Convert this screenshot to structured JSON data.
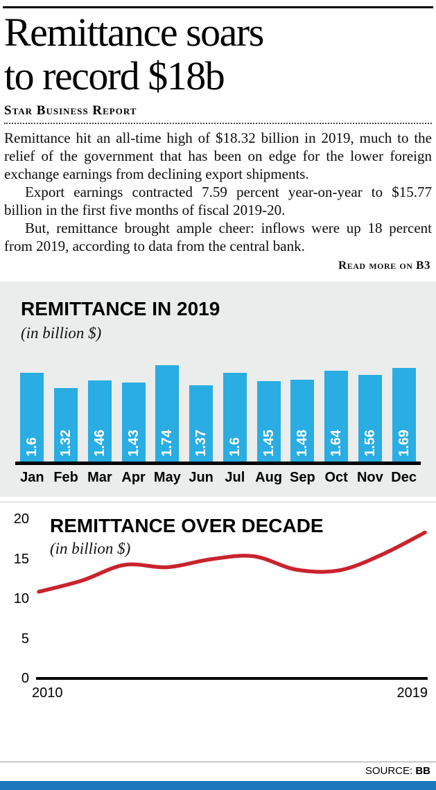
{
  "article": {
    "headline_line1": "Remittance soars",
    "headline_line2": "to record $18b",
    "byline": "Star Business Report",
    "paragraphs": [
      "Remittance hit an all-time high of $18.32 billion in 2019, much to the relief of the government that has been on edge for the lower foreign exchange earnings from declining export shipments.",
      "Export earnings contracted 7.59 percent year-on-year to $15.77 billion in the first five months of fiscal 2019-20.",
      "But, remittance brought ample cheer: inflows were up 18 percent from 2019, according to data from the central bank."
    ],
    "read_more": "Read more on B3"
  },
  "source": {
    "label": "SOURCE:",
    "value": "BB"
  },
  "colors": {
    "bar_blue": "#29ade2",
    "line_red": "#c9232d",
    "bottom_bar_blue": "#1b76bc",
    "chart_bg": "#ebecec"
  },
  "chart_data": [
    {
      "type": "bar",
      "title": "REMITTANCE IN 2019",
      "subtitle": "(in billion $)",
      "categories": [
        "Jan",
        "Feb",
        "Mar",
        "Apr",
        "May",
        "Jun",
        "Jul",
        "Aug",
        "Sep",
        "Oct",
        "Nov",
        "Dec"
      ],
      "values": [
        1.6,
        1.32,
        1.46,
        1.43,
        1.74,
        1.37,
        1.6,
        1.45,
        1.48,
        1.64,
        1.56,
        1.69
      ],
      "ylim": [
        0,
        1.8
      ],
      "grid": false,
      "legend": "none",
      "bar_color": "#29ade2",
      "value_labels": "inside-rotated-white"
    },
    {
      "type": "line",
      "title": "REMITTANCE OVER DECADE",
      "subtitle": "(in billion $)",
      "x": [
        2010,
        2011,
        2012,
        2013,
        2014,
        2015,
        2016,
        2017,
        2018,
        2019
      ],
      "values": [
        10.8,
        12.2,
        14.2,
        13.9,
        14.9,
        15.3,
        13.6,
        13.5,
        15.5,
        18.3
      ],
      "x_tick_labels": [
        "2010",
        "2019"
      ],
      "y_ticks": [
        0,
        5,
        10,
        15,
        20
      ],
      "ylim": [
        0,
        20
      ],
      "grid": false,
      "legend": "none",
      "line_color": "#c9232d"
    }
  ]
}
